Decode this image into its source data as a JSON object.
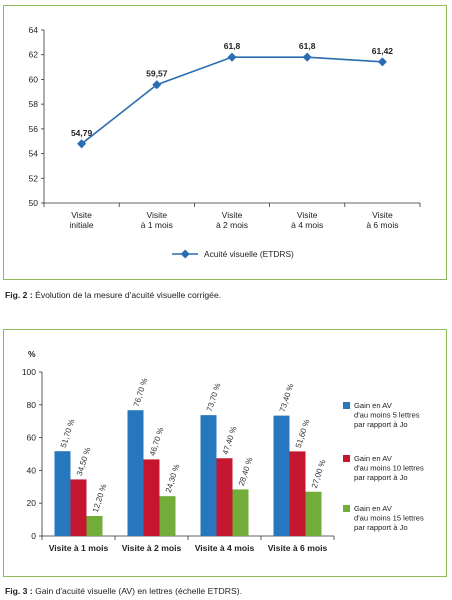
{
  "figure2": {
    "caption_label": "Fig. 2 :",
    "caption_text": "Évolution de la mesure d'acuité visuelle corrigée."
  },
  "figure3": {
    "caption_label": "Fig. 3 :",
    "caption_text": "Gain d'acuité visuelle (AV) en lettres (échelle ETDRS)."
  },
  "colors": {
    "panel_border": "#8dbb5a",
    "line": "#2a6db1",
    "bar_5": "#2777be",
    "bar_10": "#c4162f",
    "bar_15": "#72ad3a"
  },
  "chart_data": [
    {
      "type": "line",
      "categories": [
        [
          "Visite",
          "initiale"
        ],
        [
          "Visite",
          "à 1 mois"
        ],
        [
          "Visite",
          "à 2 mois"
        ],
        [
          "Visite",
          "à 4 mois"
        ],
        [
          "Visite",
          "à 6 mois"
        ]
      ],
      "series": [
        {
          "name": "Acuité visuelle (ETDRS)",
          "values": [
            54.79,
            59.57,
            61.8,
            61.8,
            61.42
          ],
          "labels": [
            "54,79",
            "59,57",
            "61,8",
            "61,8",
            "61,42"
          ]
        }
      ],
      "ylim": [
        50,
        64
      ],
      "yticks": [
        "50",
        "52",
        "54",
        "56",
        "58",
        "60",
        "62",
        "64"
      ],
      "legend": "bottom",
      "grid": false
    },
    {
      "type": "bar",
      "ylabel": "%",
      "categories": [
        "Visite à 1 mois",
        "Visite à 2 mois",
        "Visite à 4 mois",
        "Visite à 6 mois"
      ],
      "series": [
        {
          "name": [
            "Gain en AV",
            "d'au moins 5 lettres",
            "par rapport à Jo"
          ],
          "values": [
            51.7,
            76.7,
            73.7,
            73.4
          ],
          "labels": [
            "51,70 %",
            "76,70 %",
            "73,70 %",
            "73,40 %"
          ]
        },
        {
          "name": [
            "Gain en AV",
            "d'au moins 10 lettres",
            "par rapport à Jo"
          ],
          "values": [
            34.5,
            46.7,
            47.4,
            51.6
          ],
          "labels": [
            "34,50 %",
            "46,70 %",
            "47,40 %",
            "51,60 %"
          ]
        },
        {
          "name": [
            "Gain en AV",
            "d'au moins 15 lettres",
            "par rapport à Jo"
          ],
          "values": [
            12.2,
            24.3,
            28.4,
            27.0
          ],
          "labels": [
            "12,20 %",
            "24,30 %",
            "28,40 %",
            "27,00 %"
          ]
        }
      ],
      "ylim": [
        0,
        100
      ],
      "yticks": [
        "0",
        "20",
        "40",
        "60",
        "80",
        "100"
      ],
      "legend": "right",
      "grid": false
    }
  ]
}
